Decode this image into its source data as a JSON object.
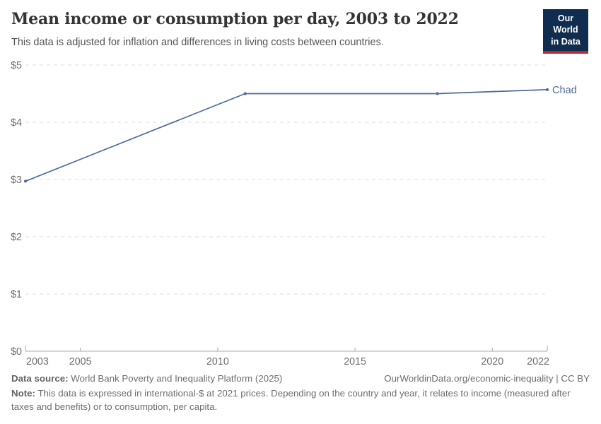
{
  "header": {
    "logo": {
      "line1": "Our World",
      "line2": "in Data"
    }
  },
  "chart_data": {
    "type": "line",
    "title": "Mean income or consumption per day, 2003 to 2022",
    "subtitle": "This data is adjusted for inflation and differences in living costs between countries.",
    "xlabel": "",
    "ylabel": "",
    "x": [
      2003,
      2011,
      2018,
      2022
    ],
    "series": [
      {
        "name": "Chad",
        "color": "#4c6a9c",
        "values": [
          2.97,
          4.5,
          4.5,
          4.57
        ]
      }
    ],
    "x_ticks": [
      2003,
      2005,
      2010,
      2015,
      2020,
      2022
    ],
    "y_ticks": [
      {
        "value": 0,
        "label": "$0"
      },
      {
        "value": 1,
        "label": "$1"
      },
      {
        "value": 2,
        "label": "$2"
      },
      {
        "value": 3,
        "label": "$3"
      },
      {
        "value": 4,
        "label": "$4"
      },
      {
        "value": 5,
        "label": "$5"
      }
    ],
    "xlim": [
      2003,
      2022
    ],
    "ylim": [
      0,
      5
    ],
    "grid": "horizontal-dashed",
    "legend_position": "line-end-label"
  },
  "colors": {
    "line": "#4c6a9c",
    "grid": "#dedede",
    "axis": "#a8a8a8",
    "tick_label": "#6e6e6e",
    "logo_bg": "#102d50",
    "logo_accent": "#c0262d"
  },
  "footer": {
    "data_source_label": "Data source:",
    "data_source": " World Bank Poverty and Inequality Platform (2025)",
    "attribution": "OurWorldinData.org/economic-inequality | CC BY",
    "note_label": "Note:",
    "note": " This data is expressed in international-$ at 2021 prices. Depending on the country and year, it relates to income (measured after taxes and benefits) or to consumption, per capita."
  }
}
